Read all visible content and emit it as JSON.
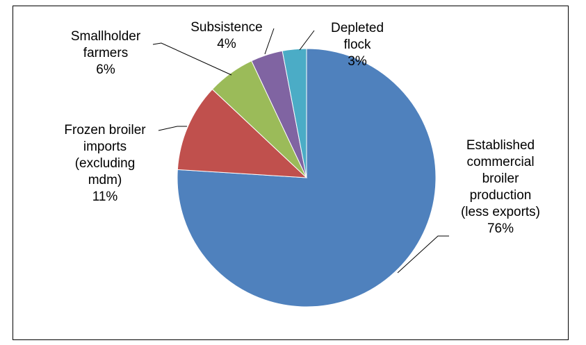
{
  "chart_data": {
    "type": "pie",
    "slices": [
      {
        "label_lines": [
          "Established",
          "commercial",
          "broiler",
          "production",
          "(less exports)"
        ],
        "value_label": "76%",
        "value": 76,
        "color": "#4F81BD"
      },
      {
        "label_lines": [
          "Frozen broiler",
          "imports",
          "(excluding",
          "mdm)"
        ],
        "value_label": "11%",
        "value": 11,
        "color": "#C0504D"
      },
      {
        "label_lines": [
          "Smallholder",
          "farmers"
        ],
        "value_label": "6%",
        "value": 6,
        "color": "#9BBB59"
      },
      {
        "label_lines": [
          "Subsistence"
        ],
        "value_label": "4%",
        "value": 4,
        "color": "#8064A2"
      },
      {
        "label_lines": [
          "Depleted",
          "flock"
        ],
        "value_label": "3%",
        "value": 3,
        "color": "#4BACC6"
      }
    ]
  }
}
